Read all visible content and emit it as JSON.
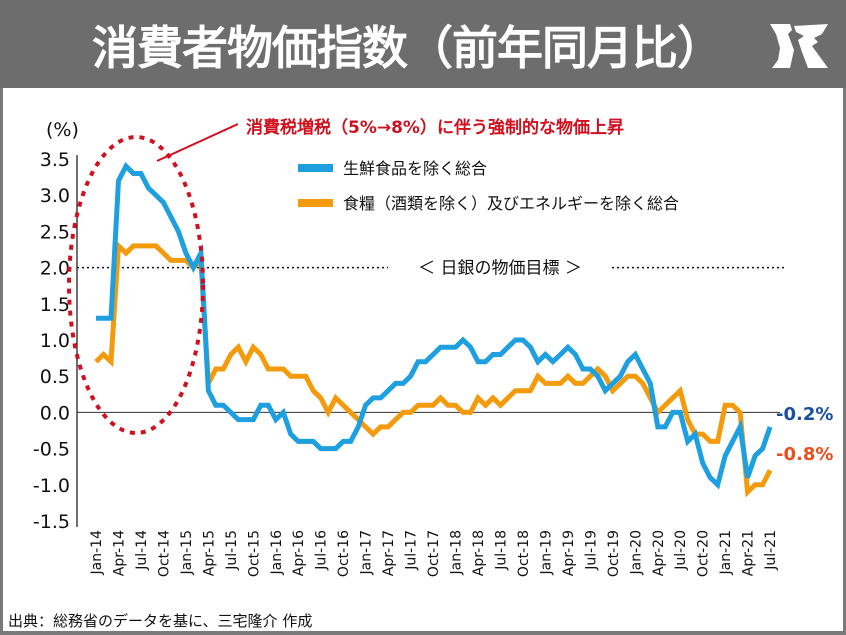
{
  "header": {
    "title": "消費者物価指数（前年同月比）",
    "logo_icon": "jr-monogram-logo"
  },
  "source": "出典：総務省のデータを基に、三宅隆介 作成",
  "chart_data": {
    "type": "line",
    "title": "消費者物価指数（前年同月比）",
    "ylabel": "(%)",
    "xlabel": "",
    "ylim": [
      -1.5,
      3.5
    ],
    "yticks": [
      3.5,
      3.0,
      2.5,
      2.0,
      1.5,
      1.0,
      0.5,
      0.0,
      -0.5,
      -1.0,
      -1.5
    ],
    "ytick_labels": [
      "3.5",
      "3.0",
      "2.5",
      "2.0",
      "1.5",
      "1.0",
      "0.5",
      "0.0",
      "-0.5",
      "-1.0",
      "-1.5"
    ],
    "xtick_labels": [
      "Jan-14",
      "Apr-14",
      "Jul-14",
      "Oct-14",
      "Jan-15",
      "Apr-15",
      "Jul-15",
      "Oct-15",
      "Jan-16",
      "Apr-16",
      "Jul-16",
      "Oct-16",
      "Jan-17",
      "Apr-17",
      "Jul-17",
      "Oct-17",
      "Jan-18",
      "Apr-18",
      "Jul-18",
      "Oct-18",
      "Jan-19",
      "Apr-19",
      "Jul-19",
      "Oct-19",
      "Jan-20",
      "Apr-20",
      "Jul-20",
      "Oct-20",
      "Jan-21",
      "Apr-21",
      "Jul-21"
    ],
    "x_start": "Jan-14",
    "x_frequency": "monthly",
    "grid": false,
    "legend_position": "top-right",
    "series": [
      {
        "name": "生鮮食品を除く総合",
        "color": "#1e9fe0",
        "values": [
          1.3,
          1.3,
          1.3,
          3.2,
          3.4,
          3.3,
          3.3,
          3.1,
          3.0,
          2.9,
          2.7,
          2.5,
          2.2,
          2.0,
          2.2,
          0.3,
          0.1,
          0.1,
          0.0,
          -0.1,
          -0.1,
          -0.1,
          0.1,
          0.1,
          -0.1,
          0.0,
          -0.3,
          -0.4,
          -0.4,
          -0.4,
          -0.5,
          -0.5,
          -0.5,
          -0.4,
          -0.4,
          -0.2,
          0.1,
          0.2,
          0.2,
          0.3,
          0.4,
          0.4,
          0.5,
          0.7,
          0.7,
          0.8,
          0.9,
          0.9,
          0.9,
          1.0,
          0.9,
          0.7,
          0.7,
          0.8,
          0.8,
          0.9,
          1.0,
          1.0,
          0.9,
          0.7,
          0.8,
          0.7,
          0.8,
          0.9,
          0.8,
          0.6,
          0.6,
          0.5,
          0.3,
          0.4,
          0.5,
          0.7,
          0.8,
          0.6,
          0.4,
          -0.2,
          -0.2,
          0.0,
          0.0,
          -0.4,
          -0.3,
          -0.7,
          -0.9,
          -1.0,
          -0.6,
          -0.4,
          -0.2,
          -0.9,
          -0.6,
          -0.5,
          -0.2
        ],
        "end_label": "-0.2%",
        "end_label_color": "#1a4fa0"
      },
      {
        "name": "食糧（酒類を除く）及びエネルギーを除く総合",
        "color": "#f39b0c",
        "values": [
          0.7,
          0.8,
          0.7,
          2.3,
          2.2,
          2.3,
          2.3,
          2.3,
          2.3,
          2.2,
          2.1,
          2.1,
          2.1,
          2.0,
          2.1,
          0.4,
          0.6,
          0.6,
          0.8,
          0.9,
          0.7,
          0.9,
          0.8,
          0.6,
          0.6,
          0.6,
          0.5,
          0.5,
          0.5,
          0.3,
          0.2,
          0.0,
          0.2,
          0.1,
          0.0,
          -0.1,
          -0.2,
          -0.3,
          -0.2,
          -0.2,
          -0.1,
          0.0,
          0.0,
          0.1,
          0.1,
          0.1,
          0.2,
          0.1,
          0.1,
          0.0,
          0.0,
          0.2,
          0.1,
          0.2,
          0.1,
          0.2,
          0.3,
          0.3,
          0.3,
          0.5,
          0.4,
          0.4,
          0.4,
          0.5,
          0.4,
          0.4,
          0.5,
          0.6,
          0.5,
          0.3,
          0.4,
          0.5,
          0.5,
          0.4,
          0.2,
          0.0,
          0.1,
          0.2,
          0.3,
          -0.1,
          -0.3,
          -0.3,
          -0.4,
          -0.4,
          0.1,
          0.1,
          0.0,
          -1.1,
          -1.0,
          -1.0,
          -0.8
        ],
        "end_label": "-0.8%",
        "end_label_color": "#e8501e"
      }
    ],
    "reference_line": {
      "value": 2.0,
      "label": "＜ 日銀の物価目標 ＞",
      "style": "dotted"
    },
    "zero_line": {
      "value": 0.0
    },
    "annotation": {
      "text": "消費税増税（5%→8%）に伴う強制的な物価上昇",
      "color": "#d0101e",
      "target_range": [
        "Jan-14",
        "Apr-15"
      ],
      "shape": "dotted-ellipse"
    }
  }
}
